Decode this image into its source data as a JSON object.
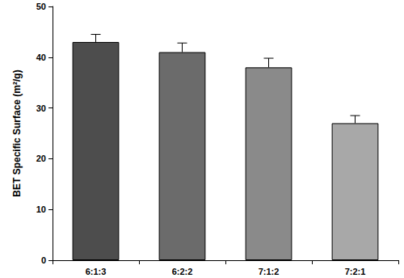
{
  "chart_data": {
    "type": "bar",
    "y_label": "BET Specific Surface (m²/g)",
    "categories": [
      "6:1:3",
      "6:2:2",
      "7:1:2",
      "7:2:1"
    ],
    "values": [
      43,
      41,
      38,
      27
    ],
    "errors": [
      1.5,
      1.8,
      1.8,
      1.5
    ],
    "colors": [
      "#4d4d4d",
      "#6b6b6b",
      "#8a8a8a",
      "#a8a8a8"
    ],
    "ylim": [
      0,
      50
    ],
    "yticks": [
      0,
      10,
      20,
      30,
      40,
      50
    ],
    "grid": false
  }
}
